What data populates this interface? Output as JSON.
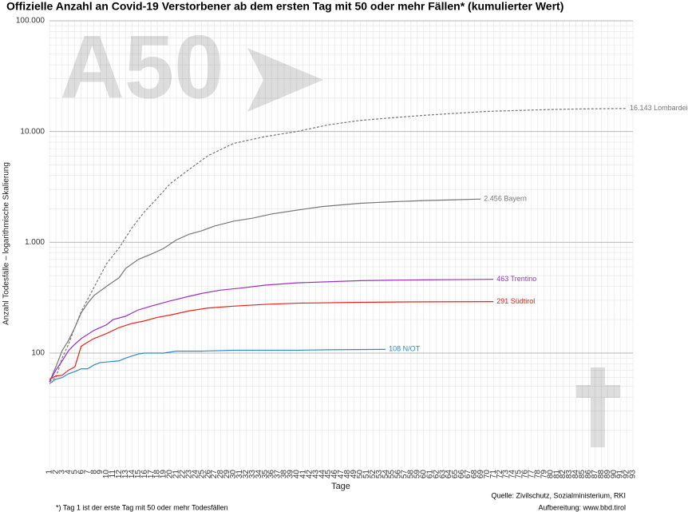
{
  "chart_data": {
    "type": "line",
    "title": "Offizielle Anzahl an Covid-19 Verstorbener ab dem ersten Tag mit 50 oder mehr Fällen* (kumulierter Wert)",
    "y_label": "Anzahl Todesfälle – logarithmische Skalierung",
    "x_label": "Tage",
    "footnote": "*) Tag 1 ist der erste Tag mit 50 oder mehr Todesfällen",
    "source": "Quelle: Zivilschutz, Sozialministerium, RKI",
    "credit": "Aufbereitung: www.bbd.tirol",
    "watermark": "A50",
    "log_y": true,
    "grid": true,
    "xlim": [
      1,
      93
    ],
    "ylim": [
      9.3,
      100000
    ],
    "xticks": [
      1,
      2,
      3,
      4,
      5,
      6,
      7,
      8,
      9,
      10,
      11,
      12,
      13,
      14,
      15,
      16,
      17,
      18,
      19,
      20,
      21,
      22,
      23,
      24,
      25,
      26,
      27,
      28,
      29,
      30,
      31,
      32,
      33,
      34,
      35,
      36,
      37,
      38,
      39,
      40,
      41,
      42,
      43,
      44,
      45,
      46,
      47,
      48,
      49,
      50,
      51,
      52,
      53,
      54,
      55,
      56,
      57,
      58,
      59,
      60,
      61,
      62,
      63,
      64,
      65,
      66,
      67,
      68,
      69,
      70,
      71,
      72,
      73,
      74,
      75,
      76,
      77,
      78,
      79,
      80,
      81,
      82,
      83,
      84,
      85,
      86,
      87,
      88,
      89,
      90,
      91,
      92,
      93
    ],
    "yticks": [
      {
        "value": 100,
        "label": "100"
      },
      {
        "value": 1000,
        "label": "1.000"
      },
      {
        "value": 10000,
        "label": "10.000"
      },
      {
        "value": 100000,
        "label": "100.000"
      }
    ],
    "series": [
      {
        "name": "Lombardei",
        "end_label": "16.143 Lombardei",
        "color": "#777777",
        "dashed": true,
        "x": [
          1,
          2,
          3,
          4,
          5,
          6,
          8,
          10,
          12,
          14,
          16,
          18,
          20,
          23,
          26,
          30,
          35,
          40,
          45,
          50,
          55,
          60,
          65,
          70,
          75,
          80,
          85,
          92
        ],
        "values": [
          55,
          60,
          90,
          120,
          170,
          237,
          390,
          640,
          894,
          1350,
          1890,
          2500,
          3370,
          4540,
          6050,
          7800,
          9000,
          10000,
          11500,
          12600,
          13300,
          14000,
          14600,
          15200,
          15500,
          15800,
          16000,
          16143
        ]
      },
      {
        "name": "Bayern",
        "end_label": "2.456 Bayern",
        "color": "#777777",
        "dashed": false,
        "x": [
          1,
          2,
          3,
          4,
          5,
          6,
          7,
          8,
          10,
          12,
          13,
          15,
          17,
          19,
          21,
          23,
          25,
          27,
          30,
          33,
          36,
          40,
          44,
          50,
          55,
          60,
          65,
          69
        ],
        "values": [
          55,
          75,
          105,
          130,
          170,
          230,
          280,
          330,
          400,
          480,
          580,
          700,
          780,
          880,
          1050,
          1180,
          1270,
          1400,
          1550,
          1650,
          1800,
          1950,
          2100,
          2250,
          2320,
          2380,
          2420,
          2456
        ]
      },
      {
        "name": "Trentino",
        "end_label": "463 Trentino",
        "color": "#9b30c0",
        "dashed": false,
        "x": [
          1,
          2,
          3,
          4,
          5,
          6,
          8,
          10,
          11,
          13,
          15,
          17,
          20,
          23,
          25,
          28,
          31,
          35,
          40,
          45,
          50,
          55,
          60,
          65,
          71
        ],
        "values": [
          55,
          70,
          85,
          105,
          120,
          135,
          160,
          180,
          200,
          215,
          245,
          265,
          295,
          325,
          345,
          370,
          385,
          410,
          430,
          440,
          450,
          455,
          458,
          460,
          463
        ]
      },
      {
        "name": "Südtirol",
        "end_label": "291 Südtirol",
        "color": "#e8231b",
        "dashed": false,
        "x": [
          1,
          2,
          3,
          4,
          5,
          6,
          7,
          8,
          10,
          12,
          14,
          16,
          18,
          20,
          23,
          26,
          30,
          35,
          40,
          50,
          60,
          71
        ],
        "values": [
          58,
          62,
          63,
          70,
          75,
          115,
          125,
          135,
          150,
          170,
          185,
          195,
          210,
          220,
          240,
          255,
          265,
          275,
          282,
          287,
          290,
          291
        ]
      },
      {
        "name": "N/OT",
        "end_label": "108 N/OT",
        "color": "#2b8cc4",
        "dashed": false,
        "x": [
          1,
          2,
          3,
          4,
          5,
          6,
          7,
          8,
          9,
          10,
          12,
          13,
          15,
          16,
          19,
          21,
          25,
          30,
          40,
          45,
          54
        ],
        "values": [
          53,
          58,
          60,
          65,
          68,
          72,
          72,
          78,
          82,
          83,
          85,
          90,
          98,
          100,
          100,
          104,
          104,
          106,
          106,
          107,
          108
        ]
      }
    ]
  }
}
